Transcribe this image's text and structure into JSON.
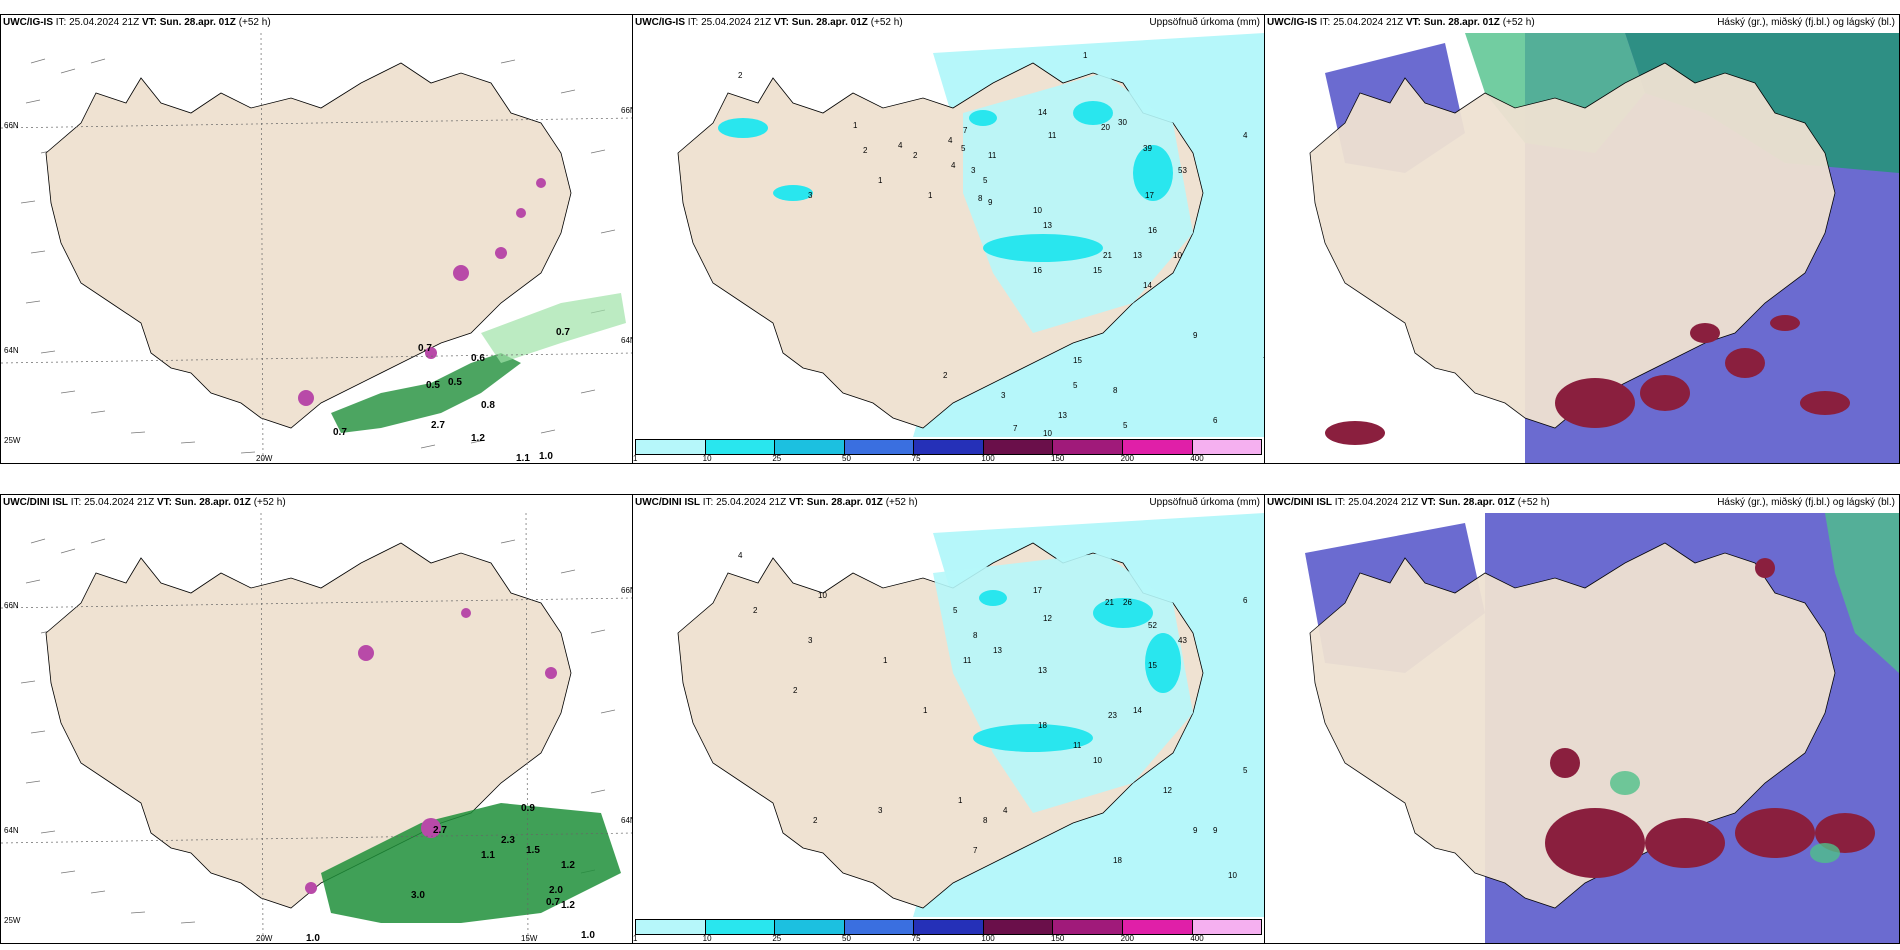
{
  "colors": {
    "land": "#efe2d2",
    "sea_white": "#ffffff",
    "precip_light": "#b6f7fa",
    "precip_mid": "#29e6ee",
    "green_band": "#1f8f3a",
    "green_light": "#9fe3a8",
    "magenta": "#b84aa8",
    "cloud_purple": "#6b6bd0",
    "cloud_teal": "#2e8f84",
    "cloud_green": "#4fc08a",
    "cloud_red": "#8a1f3e"
  },
  "legend": {
    "ticks": [
      "1",
      "10",
      "25",
      "50",
      "75",
      "100",
      "150",
      "200",
      "400"
    ],
    "colors": [
      "#b6f7fa",
      "#29e6ee",
      "#1cc0e0",
      "#3a6fe0",
      "#2530b8",
      "#6a0f4a",
      "#a01a7a",
      "#e01fa8",
      "#f5b0f0"
    ]
  },
  "rows": [
    {
      "model": "UWC/IG-IS",
      "it_label": "IT:",
      "it_value": "25.04.2024 21Z",
      "vt_label": "VT:",
      "vt_value": "Sun. 28.apr. 01Z",
      "lead": "(+52 h)",
      "accum_title": "Uppsöfnuð úrkoma (mm)",
      "cloud_title": "Háský (gr.), miðský (fj.bl.) og lágský (bl.)",
      "axis": {
        "lat_top": "66N",
        "lat_mid": "64N",
        "lat_bot": "25W",
        "lon_a": "20W",
        "lon_b": "",
        "right_top": "66N",
        "right_mid": "64N"
      },
      "wind_labels": [
        "0.7",
        "0.6",
        "0.5",
        "0.5",
        "0.8",
        "0.7",
        "1.1",
        "1.0",
        "0.7",
        "2.7",
        "1.2"
      ],
      "precip_numbers": [
        "2",
        "1",
        "2",
        "4",
        "2",
        "1",
        "3",
        "4",
        "5",
        "3",
        "4",
        "5",
        "1",
        "7",
        "8",
        "11",
        "9",
        "10",
        "14",
        "11",
        "13",
        "16",
        "20",
        "30",
        "39",
        "53",
        "17",
        "16",
        "15",
        "21",
        "13",
        "14",
        "10",
        "9",
        "5",
        "8",
        "7",
        "6",
        "5",
        "3",
        "2",
        "15",
        "13",
        "10",
        "7",
        "1",
        "4"
      ]
    },
    {
      "model": "UWC/DINI ISL",
      "it_label": "IT:",
      "it_value": "25.04.2024 21Z",
      "vt_label": "VT:",
      "vt_value": "Sun. 28.apr. 01Z",
      "lead": "(+52 h)",
      "accum_title": "Uppsöfnuð úrkoma (mm)",
      "cloud_title": "Háský (gr.), miðský (fj.bl.) og lágský (bl.)",
      "axis": {
        "lat_top": "66N",
        "lat_mid": "64N",
        "lat_bot": "25W",
        "lon_a": "20W",
        "lon_b": "15W",
        "right_top": "66N",
        "right_mid": "64N"
      },
      "wind_labels": [
        "0.9",
        "2.7",
        "1.1",
        "1.2",
        "3.0",
        "2.0",
        "0.7",
        "1.2",
        "1.0",
        "1.0",
        "2.3",
        "1.5"
      ],
      "precip_numbers": [
        "4",
        "10",
        "2",
        "3",
        "1",
        "2",
        "1",
        "5",
        "8",
        "11",
        "13",
        "17",
        "21",
        "26",
        "52",
        "43",
        "12",
        "13",
        "15",
        "14",
        "23",
        "18",
        "10",
        "11",
        "12",
        "9",
        "9",
        "10",
        "18",
        "6",
        "7",
        "8",
        "5",
        "4",
        "3",
        "2",
        "1"
      ]
    }
  ]
}
